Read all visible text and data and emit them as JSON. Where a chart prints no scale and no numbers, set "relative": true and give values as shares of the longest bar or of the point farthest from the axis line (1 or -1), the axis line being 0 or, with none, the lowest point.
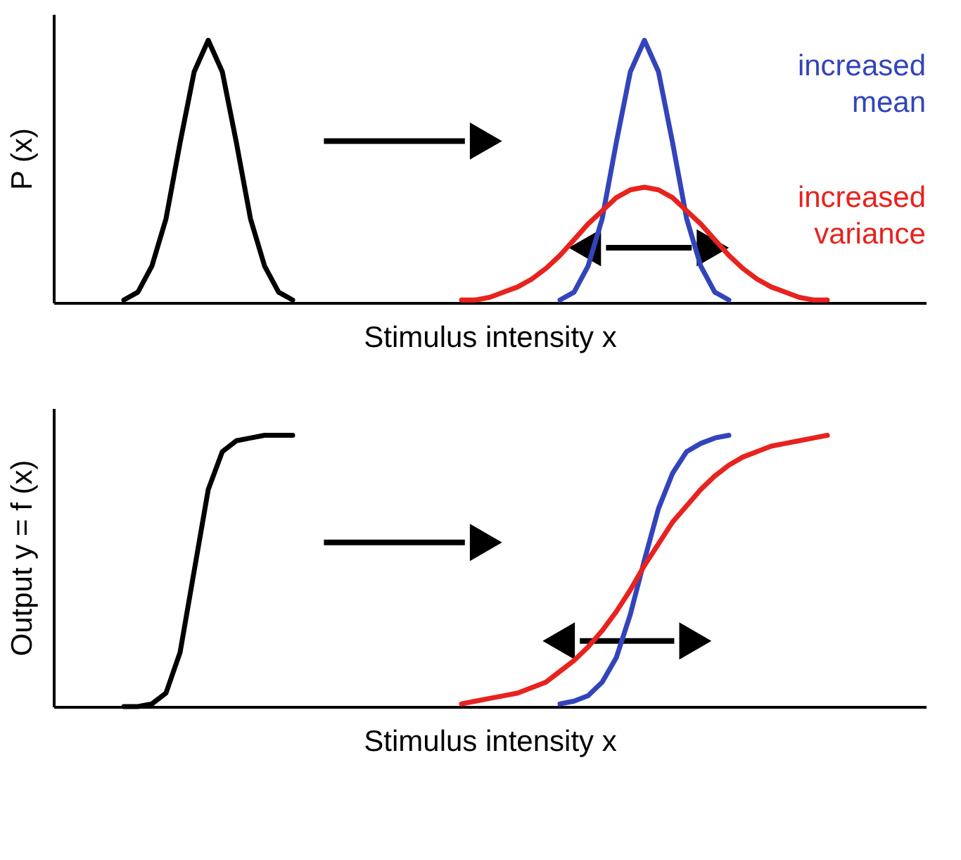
{
  "chart_data": [
    {
      "type": "line",
      "relative": true,
      "ylabel": "P (x)",
      "xlabel": "Stimulus intensity x",
      "tick_labels": false,
      "grid": false,
      "legend": false,
      "line_style": "solid",
      "marker": "none",
      "categories": [
        null,
        null,
        null,
        null,
        null,
        null,
        null,
        null,
        null,
        null,
        null,
        null,
        null,
        null,
        null,
        null,
        null,
        null,
        null,
        null,
        null,
        null,
        null,
        null,
        null,
        null,
        null,
        null,
        null,
        null,
        null,
        null,
        null,
        null,
        null,
        null,
        null,
        null,
        null,
        null,
        null,
        null,
        null,
        null,
        null,
        null,
        null,
        null,
        null,
        null,
        null,
        null,
        null,
        null,
        null,
        null,
        null,
        null,
        null,
        null,
        null,
        null,
        null
      ],
      "series": [
        {
          "color": "#000000",
          "values": [
            null,
            null,
            null,
            null,
            null,
            0.01,
            0.04,
            0.14,
            0.32,
            0.61,
            0.88,
            1,
            0.88,
            0.61,
            0.32,
            0.14,
            0.04,
            0.01,
            null,
            null,
            null,
            null,
            null,
            null,
            null,
            null,
            null,
            null,
            null,
            null,
            null,
            null,
            null,
            null,
            null,
            null,
            null,
            null,
            null,
            null,
            null,
            null,
            null,
            null,
            null,
            null,
            null,
            null,
            null,
            null,
            null,
            null,
            null,
            null,
            null,
            null,
            null,
            null,
            null,
            null,
            null,
            null,
            null
          ]
        },
        {
          "name": "increased mean",
          "color": "#3344bb",
          "values": [
            null,
            null,
            null,
            null,
            null,
            null,
            null,
            null,
            null,
            null,
            null,
            null,
            null,
            null,
            null,
            null,
            null,
            null,
            null,
            null,
            null,
            null,
            null,
            null,
            null,
            null,
            null,
            null,
            null,
            null,
            null,
            null,
            null,
            null,
            null,
            null,
            0.01,
            0.04,
            0.14,
            0.32,
            0.61,
            0.88,
            1,
            0.88,
            0.61,
            0.32,
            0.14,
            0.04,
            0.01,
            null,
            null,
            null,
            null,
            null,
            null,
            null,
            null,
            null,
            null,
            null,
            null,
            null,
            null
          ]
        },
        {
          "name": "increased variance",
          "color": "#e8221e",
          "values": [
            null,
            null,
            null,
            null,
            null,
            null,
            null,
            null,
            null,
            null,
            null,
            null,
            null,
            null,
            null,
            null,
            null,
            null,
            null,
            null,
            null,
            null,
            null,
            null,
            null,
            null,
            null,
            null,
            null,
            0.01,
            0.01,
            0.02,
            0.04,
            0.06,
            0.09,
            0.13,
            0.18,
            0.24,
            0.3,
            0.35,
            0.4,
            0.43,
            0.44,
            0.43,
            0.4,
            0.35,
            0.3,
            0.24,
            0.18,
            0.13,
            0.09,
            0.06,
            0.04,
            0.02,
            0.01,
            0.01,
            null,
            null,
            null,
            null,
            null,
            null,
            null
          ]
        }
      ]
    },
    {
      "type": "line",
      "relative": true,
      "ylabel": "Output y = f (x)",
      "xlabel": "Stimulus intensity x",
      "tick_labels": false,
      "grid": false,
      "legend": false,
      "line_style": "solid",
      "marker": "none",
      "categories": [
        null,
        null,
        null,
        null,
        null,
        null,
        null,
        null,
        null,
        null,
        null,
        null,
        null,
        null,
        null,
        null,
        null,
        null,
        null,
        null,
        null,
        null,
        null,
        null,
        null,
        null,
        null,
        null,
        null,
        null,
        null,
        null,
        null,
        null,
        null,
        null,
        null,
        null,
        null,
        null,
        null,
        null,
        null,
        null,
        null,
        null,
        null,
        null,
        null,
        null,
        null,
        null,
        null,
        null,
        null,
        null,
        null,
        null,
        null,
        null,
        null,
        null,
        null
      ],
      "series": [
        {
          "color": "#000000",
          "values": [
            null,
            null,
            null,
            null,
            null,
            0,
            0,
            0.01,
            0.05,
            0.2,
            0.5,
            0.8,
            0.94,
            0.98,
            0.99,
            1,
            1,
            1,
            null,
            null,
            null,
            null,
            null,
            null,
            null,
            null,
            null,
            null,
            null,
            null,
            null,
            null,
            null,
            null,
            null,
            null,
            null,
            null,
            null,
            null,
            null,
            null,
            null,
            null,
            null,
            null,
            null,
            null,
            null,
            null,
            null,
            null,
            null,
            null,
            null,
            null,
            null,
            null,
            null,
            null,
            null,
            null,
            null
          ]
        },
        {
          "color": "#3344bb",
          "values": [
            null,
            null,
            null,
            null,
            null,
            null,
            null,
            null,
            null,
            null,
            null,
            null,
            null,
            null,
            null,
            null,
            null,
            null,
            null,
            null,
            null,
            null,
            null,
            null,
            null,
            null,
            null,
            null,
            null,
            null,
            null,
            null,
            null,
            null,
            null,
            null,
            0.01,
            0.02,
            0.04,
            0.09,
            0.18,
            0.34,
            0.54,
            0.73,
            0.86,
            0.94,
            0.97,
            0.99,
            1,
            null,
            null,
            null,
            null,
            null,
            null,
            null,
            null,
            null,
            null,
            null,
            null,
            null,
            null
          ]
        },
        {
          "color": "#e8221e",
          "values": [
            null,
            null,
            null,
            null,
            null,
            null,
            null,
            null,
            null,
            null,
            null,
            null,
            null,
            null,
            null,
            null,
            null,
            null,
            null,
            null,
            null,
            null,
            null,
            null,
            null,
            null,
            null,
            null,
            null,
            0.01,
            0.02,
            0.03,
            0.04,
            0.05,
            0.07,
            0.09,
            0.13,
            0.17,
            0.22,
            0.28,
            0.35,
            0.43,
            0.52,
            0.6,
            0.68,
            0.74,
            0.8,
            0.85,
            0.89,
            0.92,
            0.94,
            0.96,
            0.97,
            0.98,
            0.99,
            1,
            null,
            null,
            null,
            null,
            null,
            null,
            null
          ]
        }
      ]
    }
  ]
}
